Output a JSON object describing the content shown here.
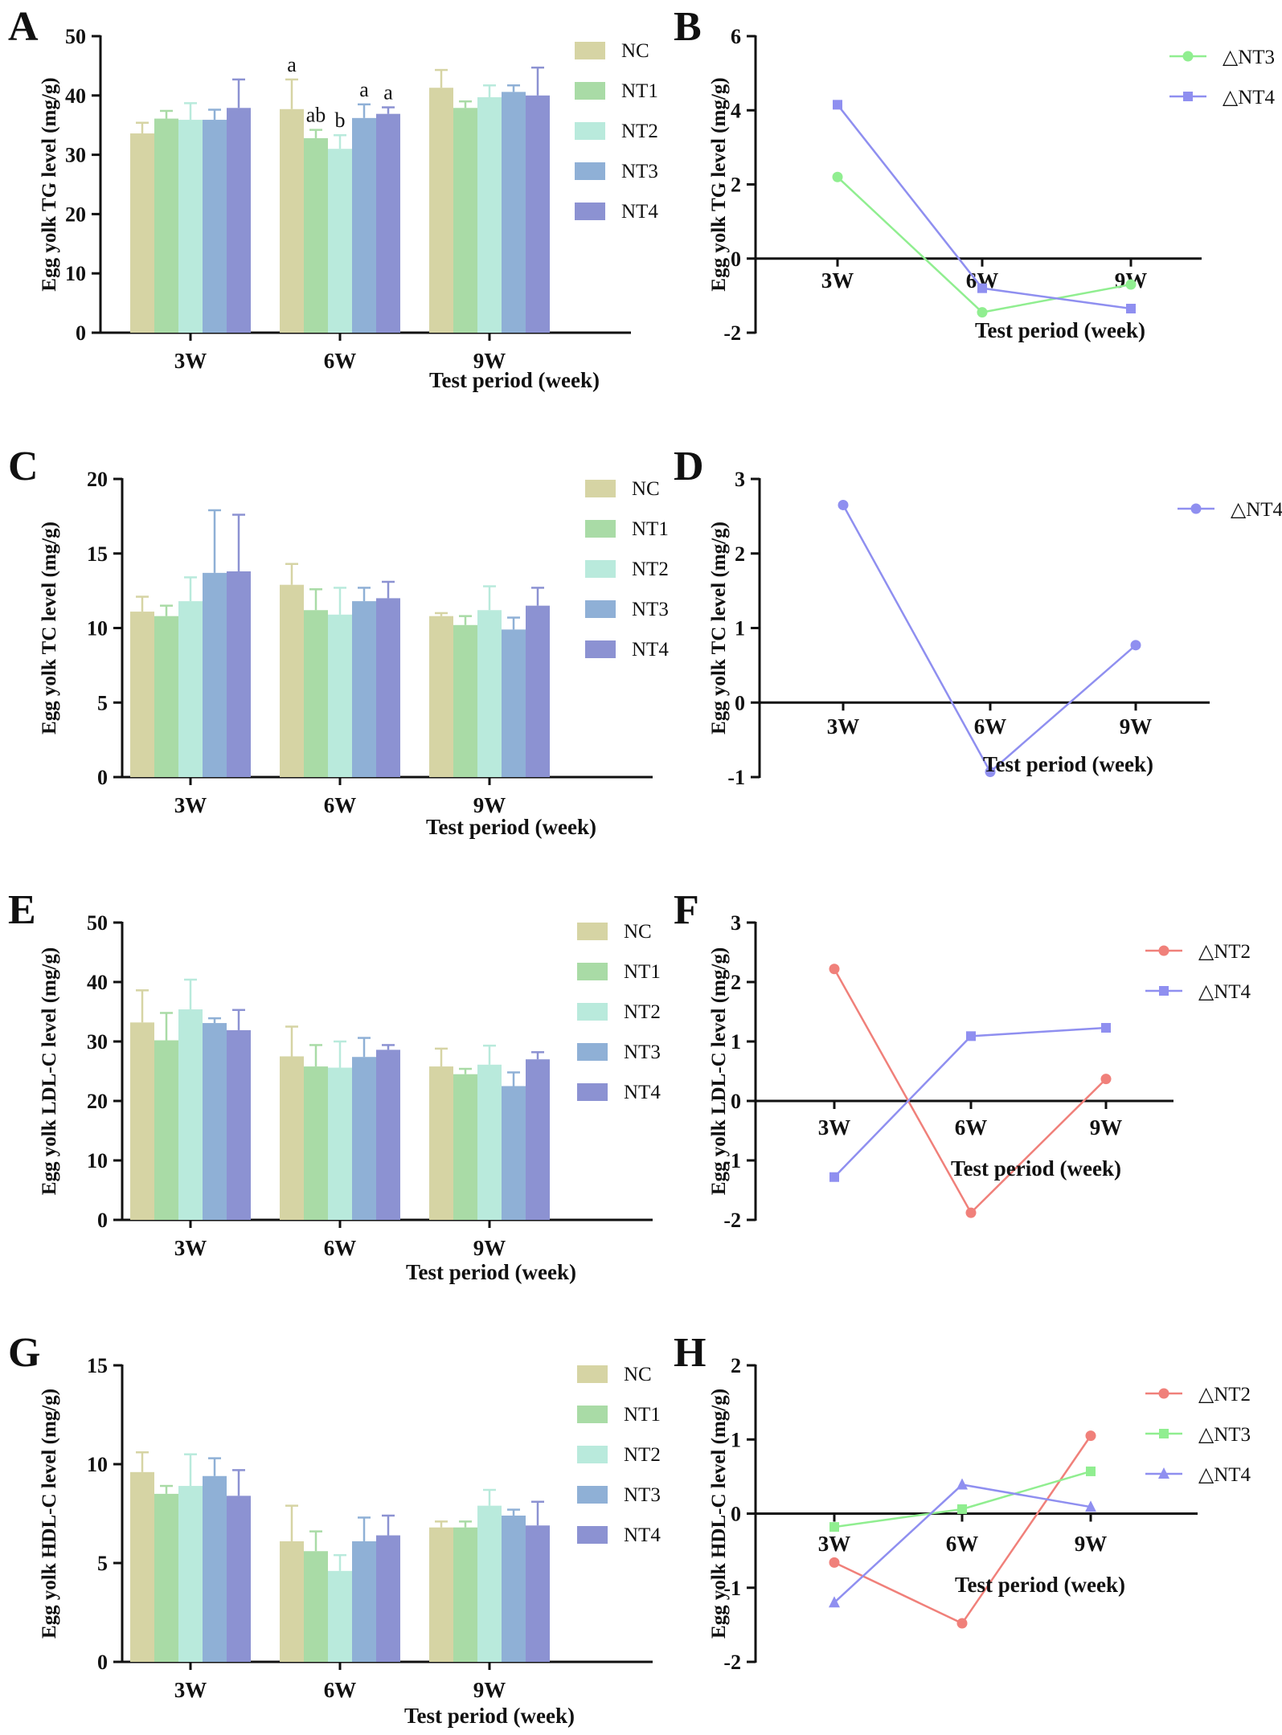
{
  "figure_panels": [
    "A",
    "B",
    "C",
    "D",
    "E",
    "F",
    "G",
    "H"
  ],
  "chart_data": [
    {
      "panel": "A",
      "type": "bar",
      "ylabel": "Egg yolk TG level (mg/g)",
      "xlabel": "Test period (week)",
      "ylim": [
        0,
        50
      ],
      "yticks": [
        0,
        10,
        20,
        30,
        40,
        50
      ],
      "categories": [
        "3W",
        "6W",
        "9W"
      ],
      "series": [
        {
          "name": "NC",
          "color": "#d6d4a4",
          "values": [
            33.6,
            37.7,
            41.3
          ],
          "errors": [
            1.8,
            5.0,
            3.0
          ]
        },
        {
          "name": "NT1",
          "color": "#a9dba6",
          "values": [
            36.1,
            32.8,
            37.9
          ],
          "errors": [
            1.3,
            1.4,
            1.1
          ]
        },
        {
          "name": "NT2",
          "color": "#b9eadc",
          "values": [
            35.9,
            31.0,
            39.7
          ],
          "errors": [
            2.8,
            2.3,
            2.0
          ]
        },
        {
          "name": "NT3",
          "color": "#8fb0d6",
          "values": [
            35.9,
            36.2,
            40.6
          ],
          "errors": [
            1.7,
            2.3,
            1.1
          ]
        },
        {
          "name": "NT4",
          "color": "#8c92d2",
          "values": [
            37.9,
            36.9,
            40.0
          ],
          "errors": [
            4.8,
            1.1,
            4.7
          ]
        }
      ],
      "annotations": [
        {
          "category": "6W",
          "series": "NC",
          "text": "a"
        },
        {
          "category": "6W",
          "series": "NT1",
          "text": "ab"
        },
        {
          "category": "6W",
          "series": "NT2",
          "text": "b"
        },
        {
          "category": "6W",
          "series": "NT3",
          "text": "a"
        },
        {
          "category": "6W",
          "series": "NT4",
          "text": "a"
        }
      ]
    },
    {
      "panel": "B",
      "type": "line",
      "ylabel": "Egg yolk TG level (mg/g)",
      "xlabel": "Test period (week)",
      "ylim": [
        -2,
        6
      ],
      "yticks": [
        -2,
        0,
        2,
        4,
        6
      ],
      "categories": [
        "3W",
        "6W",
        "9W"
      ],
      "series": [
        {
          "name": "△NT3",
          "color": "#90ee90",
          "marker": "circle",
          "values": [
            2.2,
            -1.45,
            -0.7
          ]
        },
        {
          "name": "△NT4",
          "color": "#8f8ff0",
          "marker": "square",
          "values": [
            4.15,
            -0.8,
            -1.35
          ]
        }
      ]
    },
    {
      "panel": "C",
      "type": "bar",
      "ylabel": "Egg yolk TC level (mg/g)",
      "xlabel": "Test period (week)",
      "ylim": [
        0,
        20
      ],
      "yticks": [
        0,
        5,
        10,
        15,
        20
      ],
      "categories": [
        "3W",
        "6W",
        "9W"
      ],
      "series": [
        {
          "name": "NC",
          "color": "#d6d4a4",
          "values": [
            11.1,
            12.9,
            10.8
          ],
          "errors": [
            1.0,
            1.4,
            0.2
          ]
        },
        {
          "name": "NT1",
          "color": "#a9dba6",
          "values": [
            10.8,
            11.2,
            10.2
          ],
          "errors": [
            0.7,
            1.4,
            0.6
          ]
        },
        {
          "name": "NT2",
          "color": "#b9eadc",
          "values": [
            11.8,
            10.9,
            11.2
          ],
          "errors": [
            1.6,
            1.8,
            1.6
          ]
        },
        {
          "name": "NT3",
          "color": "#8fb0d6",
          "values": [
            13.7,
            11.8,
            9.9
          ],
          "errors": [
            4.2,
            0.9,
            0.8
          ]
        },
        {
          "name": "NT4",
          "color": "#8c92d2",
          "values": [
            13.8,
            12.0,
            11.5
          ],
          "errors": [
            3.8,
            1.1,
            1.2
          ]
        }
      ]
    },
    {
      "panel": "D",
      "type": "line",
      "ylabel": "Egg yolk TC level (mg/g)",
      "xlabel": "Test period (week)",
      "ylim": [
        -1,
        3
      ],
      "yticks": [
        -1,
        0,
        1,
        2,
        3
      ],
      "categories": [
        "3W",
        "6W",
        "9W"
      ],
      "series": [
        {
          "name": "△NT4",
          "color": "#8f8ff0",
          "marker": "circle",
          "values": [
            2.65,
            -0.93,
            0.77
          ]
        }
      ]
    },
    {
      "panel": "E",
      "type": "bar",
      "ylabel": "Egg yolk LDL-C level (mg/g)",
      "xlabel": "Test period (week)",
      "ylim": [
        0,
        50
      ],
      "yticks": [
        0,
        10,
        20,
        30,
        40,
        50
      ],
      "categories": [
        "3W",
        "6W",
        "9W"
      ],
      "series": [
        {
          "name": "NC",
          "color": "#d6d4a4",
          "values": [
            33.2,
            27.5,
            25.8
          ],
          "errors": [
            5.4,
            5.0,
            3.0
          ]
        },
        {
          "name": "NT1",
          "color": "#a9dba6",
          "values": [
            30.2,
            25.8,
            24.5
          ],
          "errors": [
            4.6,
            3.6,
            0.9
          ]
        },
        {
          "name": "NT2",
          "color": "#b9eadc",
          "values": [
            35.4,
            25.6,
            26.1
          ],
          "errors": [
            5.0,
            4.4,
            3.2
          ]
        },
        {
          "name": "NT3",
          "color": "#8fb0d6",
          "values": [
            33.1,
            27.4,
            22.5
          ],
          "errors": [
            0.8,
            3.2,
            2.3
          ]
        },
        {
          "name": "NT4",
          "color": "#8c92d2",
          "values": [
            31.9,
            28.6,
            27.0
          ],
          "errors": [
            3.4,
            0.8,
            1.2
          ]
        }
      ]
    },
    {
      "panel": "F",
      "type": "line",
      "ylabel": "Egg yolk LDL-C level (mg/g)",
      "xlabel": "Test period (week)",
      "ylim": [
        -2,
        3
      ],
      "yticks": [
        -2,
        -1,
        0,
        1,
        2,
        3
      ],
      "categories": [
        "3W",
        "6W",
        "9W"
      ],
      "series": [
        {
          "name": "△NT2",
          "color": "#f0807a",
          "marker": "circle",
          "values": [
            2.22,
            -1.88,
            0.37
          ]
        },
        {
          "name": "△NT4",
          "color": "#8f8ff0",
          "marker": "square",
          "values": [
            -1.28,
            1.09,
            1.23
          ]
        }
      ]
    },
    {
      "panel": "G",
      "type": "bar",
      "ylabel": "Egg yolk HDL-C level (mg/g)",
      "xlabel": "Test period (week)",
      "ylim": [
        0,
        15
      ],
      "yticks": [
        0,
        5,
        10,
        15
      ],
      "categories": [
        "3W",
        "6W",
        "9W"
      ],
      "series": [
        {
          "name": "NC",
          "color": "#d6d4a4",
          "values": [
            9.6,
            6.1,
            6.8
          ],
          "errors": [
            1.0,
            1.8,
            0.3
          ]
        },
        {
          "name": "NT1",
          "color": "#a9dba6",
          "values": [
            8.5,
            5.6,
            6.8
          ],
          "errors": [
            0.4,
            1.0,
            0.3
          ]
        },
        {
          "name": "NT2",
          "color": "#b9eadc",
          "values": [
            8.9,
            4.6,
            7.9
          ],
          "errors": [
            1.6,
            0.8,
            0.8
          ]
        },
        {
          "name": "NT3",
          "color": "#8fb0d6",
          "values": [
            9.4,
            6.1,
            7.4
          ],
          "errors": [
            0.9,
            1.2,
            0.3
          ]
        },
        {
          "name": "NT4",
          "color": "#8c92d2",
          "values": [
            8.4,
            6.4,
            6.9
          ],
          "errors": [
            1.3,
            1.0,
            1.2
          ]
        }
      ]
    },
    {
      "panel": "H",
      "type": "line",
      "ylabel": "Egg yolk HDL-C level (mg/g)",
      "xlabel": "Test period (week)",
      "ylim": [
        -2,
        2
      ],
      "yticks": [
        -2,
        -1,
        0,
        1,
        2
      ],
      "categories": [
        "3W",
        "6W",
        "9W"
      ],
      "series": [
        {
          "name": "△NT2",
          "color": "#f0807a",
          "marker": "circle",
          "values": [
            -0.66,
            -1.48,
            1.05
          ]
        },
        {
          "name": "△NT3",
          "color": "#90ee90",
          "marker": "square",
          "values": [
            -0.18,
            0.06,
            0.57
          ]
        },
        {
          "name": "△NT4",
          "color": "#8f8ff0",
          "marker": "triangle",
          "values": [
            -1.2,
            0.39,
            0.09
          ]
        }
      ]
    }
  ]
}
